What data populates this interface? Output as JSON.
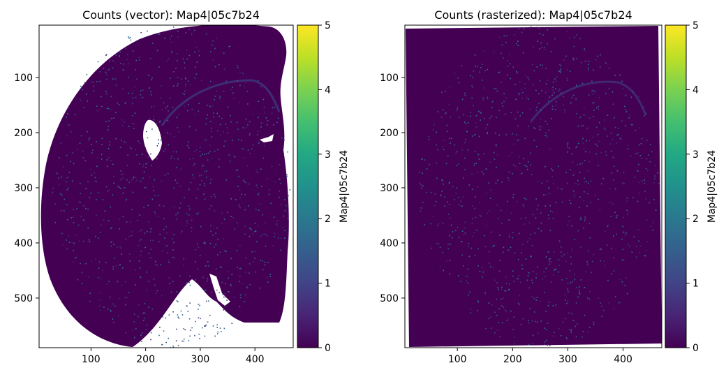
{
  "chart_data": [
    {
      "type": "heatmap",
      "title": "Counts (vector): Map4|05c7b24",
      "x_ticks": [
        100,
        200,
        300,
        400
      ],
      "y_ticks": [
        100,
        200,
        300,
        400,
        500
      ],
      "xlim": [
        5,
        470
      ],
      "ylim": [
        590,
        5
      ],
      "colorbar": {
        "label": "Map4|05c7b24",
        "range": [
          0,
          5
        ],
        "ticks": [
          0,
          1,
          2,
          3,
          4,
          5
        ],
        "colormap": "viridis"
      },
      "background": "#ffffff",
      "dominant_value": 0
    },
    {
      "type": "heatmap",
      "title": "Counts (rasterized): Map4|05c7b24",
      "x_ticks": [
        100,
        200,
        300,
        400
      ],
      "y_ticks": [
        100,
        200,
        300,
        400,
        500
      ],
      "xlim": [
        5,
        470
      ],
      "ylim": [
        590,
        5
      ],
      "colorbar": {
        "label": "Map4|05c7b24",
        "range": [
          0,
          5
        ],
        "ticks": [
          0,
          1,
          2,
          3,
          4,
          5
        ],
        "colormap": "viridis"
      },
      "background": "#440154",
      "dominant_value": 0
    }
  ],
  "colors": {
    "viridis_low": "#440154",
    "viridis_high": "#fde725"
  }
}
